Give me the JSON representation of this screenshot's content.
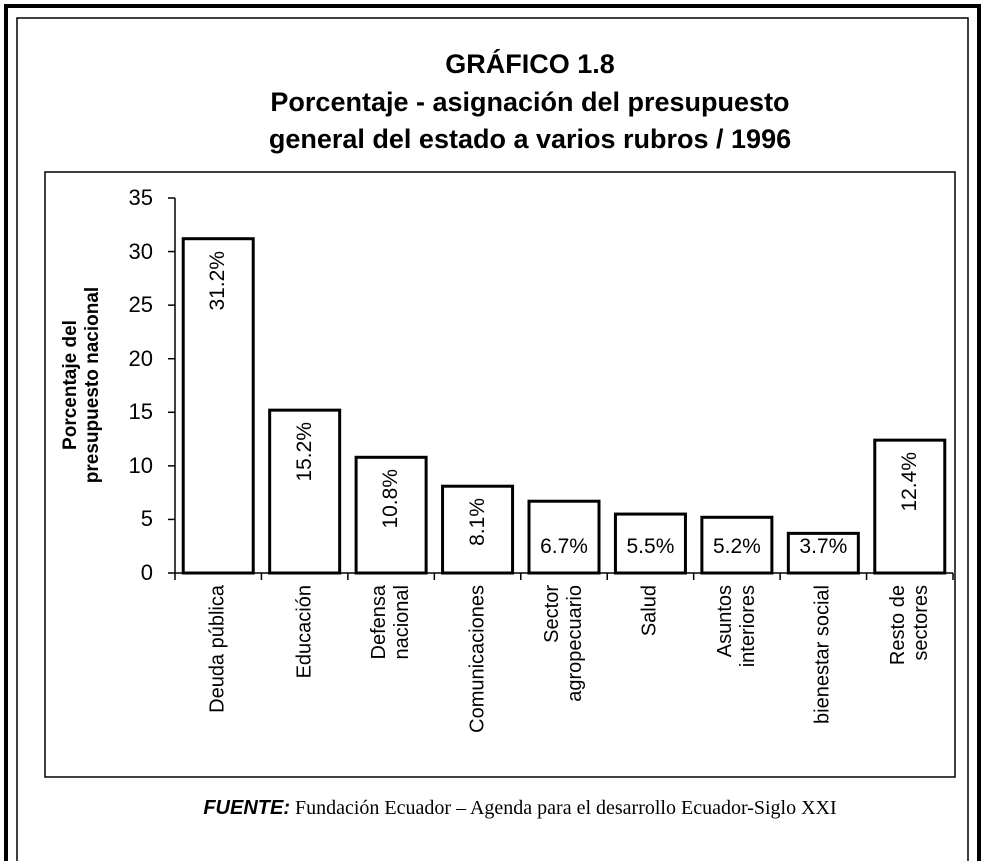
{
  "chart_data": {
    "type": "bar",
    "title": "GRÁFICO 1.8",
    "subtitle": "Porcentaje - asignación del presupuesto\ngeneral del estado a varios rubros / 1996",
    "y_label": "Porcentaje del\npresupuesto nacional",
    "categories": [
      "Deuda pública",
      "Educación",
      "Defensa\nnacional",
      "Comunicaciones",
      "Sector\nagropecuario",
      "Salud",
      "Asuntos\ninteriores",
      "bienestar social",
      "Resto de\nsectores"
    ],
    "values": [
      31.2,
      15.2,
      10.8,
      8.1,
      6.7,
      5.5,
      5.2,
      3.7,
      12.4
    ],
    "value_labels": [
      "31.2%",
      "15.2%",
      "10.8%",
      "8.1%",
      "6.7%",
      "5.5%",
      "5.2%",
      "3.7%",
      "12.4%"
    ],
    "color": "#ffffff",
    "ylim": [
      0,
      35
    ],
    "yticks": [
      0,
      5,
      10,
      15,
      20,
      25,
      30,
      35
    ],
    "grid": false,
    "source_label": "FUENTE:",
    "source": "Fundación Ecuador – Agenda para el desarrollo Ecuador-Siglo XXI"
  }
}
